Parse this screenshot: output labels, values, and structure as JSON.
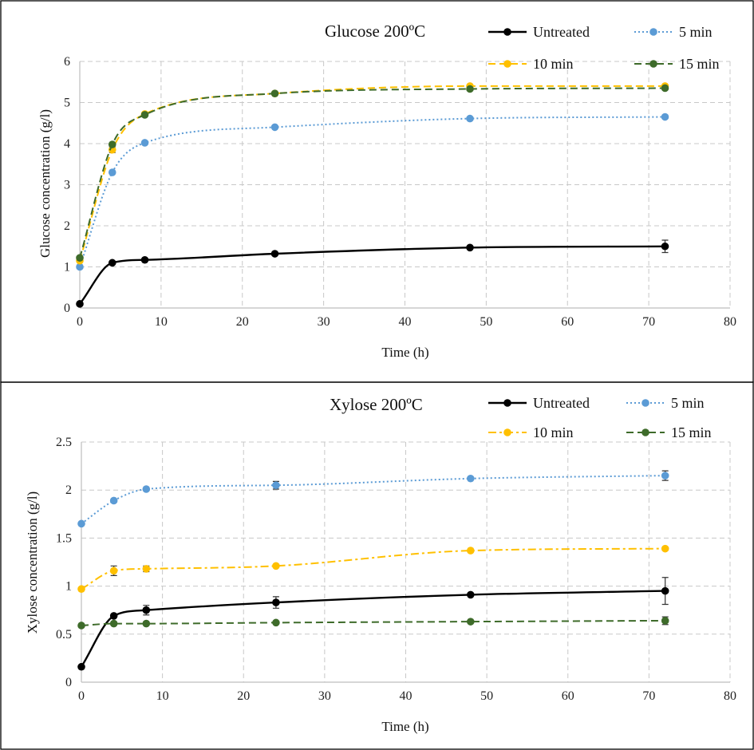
{
  "chart_data": [
    {
      "type": "line",
      "title": "Glucose 200ºC",
      "xlabel": "Time (h)",
      "ylabel": "Glucose concentration (g/l)",
      "xlim": [
        0,
        80
      ],
      "ylim": [
        0,
        6
      ],
      "xticks": [
        0,
        10,
        20,
        30,
        40,
        50,
        60,
        70,
        80
      ],
      "yticks": [
        0,
        1,
        2,
        3,
        4,
        5,
        6
      ],
      "grid": true,
      "legend": "top-right",
      "x": [
        0,
        4,
        8,
        24,
        48,
        72
      ],
      "series": [
        {
          "name": "Untreated",
          "values": [
            0.1,
            1.1,
            1.17,
            1.32,
            1.47,
            1.5
          ],
          "err": [
            0,
            0,
            0,
            0,
            0,
            0.15
          ],
          "color": "#000000",
          "style": "solid",
          "marker": "circle"
        },
        {
          "name": "5 min",
          "values": [
            1.0,
            3.3,
            4.02,
            4.4,
            4.61,
            4.65
          ],
          "err": [
            0,
            0,
            0,
            0,
            0,
            0
          ],
          "color": "#5b9bd5",
          "style": "dotted",
          "marker": "circle"
        },
        {
          "name": "10 min",
          "values": [
            1.15,
            3.85,
            4.72,
            5.22,
            5.4,
            5.4
          ],
          "err": [
            0,
            0.07,
            0,
            0,
            0,
            0
          ],
          "color": "#ffc000",
          "style": "dashed",
          "marker": "circle"
        },
        {
          "name": "15 min",
          "values": [
            1.22,
            3.98,
            4.7,
            5.22,
            5.33,
            5.35
          ],
          "err": [
            0,
            0,
            0,
            0,
            0,
            0
          ],
          "color": "#3e6b2a",
          "style": "dashed",
          "marker": "circle"
        }
      ]
    },
    {
      "type": "line",
      "title": "Xylose 200ºC",
      "xlabel": "Time (h)",
      "ylabel": "Xylose concentration (g/l)",
      "xlim": [
        0,
        80
      ],
      "ylim": [
        0,
        2.5
      ],
      "xticks": [
        0,
        10,
        20,
        30,
        40,
        50,
        60,
        70,
        80
      ],
      "yticks": [
        0,
        0.5,
        1,
        1.5,
        2,
        2.5
      ],
      "grid": true,
      "legend": "top-right",
      "x": [
        0,
        4,
        8,
        24,
        48,
        72
      ],
      "series": [
        {
          "name": "Untreated",
          "values": [
            0.16,
            0.69,
            0.75,
            0.83,
            0.91,
            0.95
          ],
          "err": [
            0,
            0,
            0.05,
            0.06,
            0,
            0.14
          ],
          "color": "#000000",
          "style": "solid",
          "marker": "circle"
        },
        {
          "name": "5 min",
          "values": [
            1.65,
            1.89,
            2.01,
            2.05,
            2.12,
            2.15
          ],
          "err": [
            0,
            0,
            0,
            0.04,
            0,
            0.05
          ],
          "color": "#5b9bd5",
          "style": "dotted",
          "marker": "circle"
        },
        {
          "name": "10 min",
          "values": [
            0.97,
            1.16,
            1.18,
            1.21,
            1.37,
            1.39
          ],
          "err": [
            0,
            0.05,
            0.03,
            0,
            0,
            0
          ],
          "color": "#ffc000",
          "style": "dashdot",
          "marker": "circle"
        },
        {
          "name": "15 min",
          "values": [
            0.59,
            0.61,
            0.61,
            0.62,
            0.63,
            0.64
          ],
          "err": [
            0,
            0,
            0,
            0,
            0,
            0.04
          ],
          "color": "#3e6b2a",
          "style": "dashed",
          "marker": "circle"
        }
      ]
    }
  ]
}
